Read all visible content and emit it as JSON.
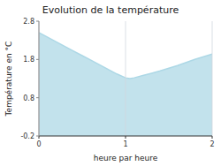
{
  "chart_data": {
    "type": "area",
    "title": "Evolution de la température",
    "x_label": "heure par heure",
    "y_label": "Température en °C",
    "x": [
      0,
      0.1,
      0.2,
      0.3,
      0.4,
      0.5,
      0.6,
      0.7,
      0.8,
      0.9,
      1.0,
      1.05,
      1.1,
      1.2,
      1.3,
      1.4,
      1.5,
      1.6,
      1.7,
      1.8,
      1.9,
      2.0
    ],
    "values": [
      2.5,
      2.38,
      2.26,
      2.14,
      2.02,
      1.9,
      1.78,
      1.66,
      1.54,
      1.42,
      1.32,
      1.3,
      1.32,
      1.38,
      1.44,
      1.5,
      1.57,
      1.64,
      1.72,
      1.8,
      1.87,
      1.94
    ],
    "color": "#add8e6",
    "xlim": [
      0,
      2
    ],
    "ylim": [
      -0.2,
      2.8
    ],
    "xticks": [
      0,
      1,
      2
    ],
    "yticks": [
      -0.2,
      0.8,
      1.8,
      2.8
    ],
    "grid": "x"
  }
}
